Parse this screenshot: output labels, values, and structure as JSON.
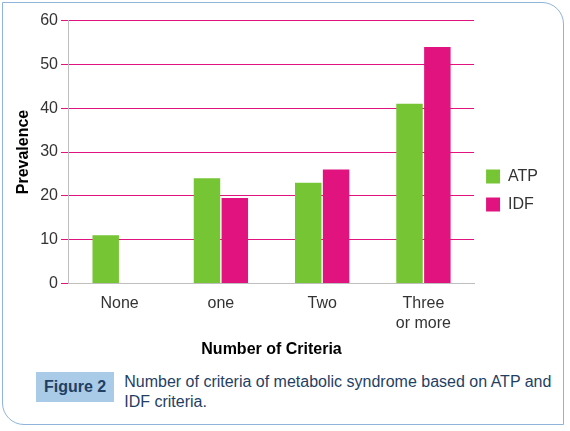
{
  "chart_data": {
    "type": "bar",
    "x_label": "Number of Criteria",
    "y_label": "Prevalence",
    "categories": [
      "None",
      "one",
      "Two",
      "Three or more"
    ],
    "series": [
      {
        "name": "ATP",
        "color": "#76c535",
        "values": [
          11,
          24,
          23,
          41
        ]
      },
      {
        "name": "IDF",
        "color": "#e0137f",
        "values": [
          0,
          19.5,
          26,
          54
        ]
      }
    ],
    "ylim": [
      0,
      60
    ],
    "yticks": [
      0,
      10,
      20,
      30,
      40,
      50,
      60
    ],
    "grid": true,
    "legend": "right"
  },
  "caption": {
    "label": "Figure 2",
    "text": "Number of criteria of metabolic syndrome based on ATP and IDF criteria."
  }
}
